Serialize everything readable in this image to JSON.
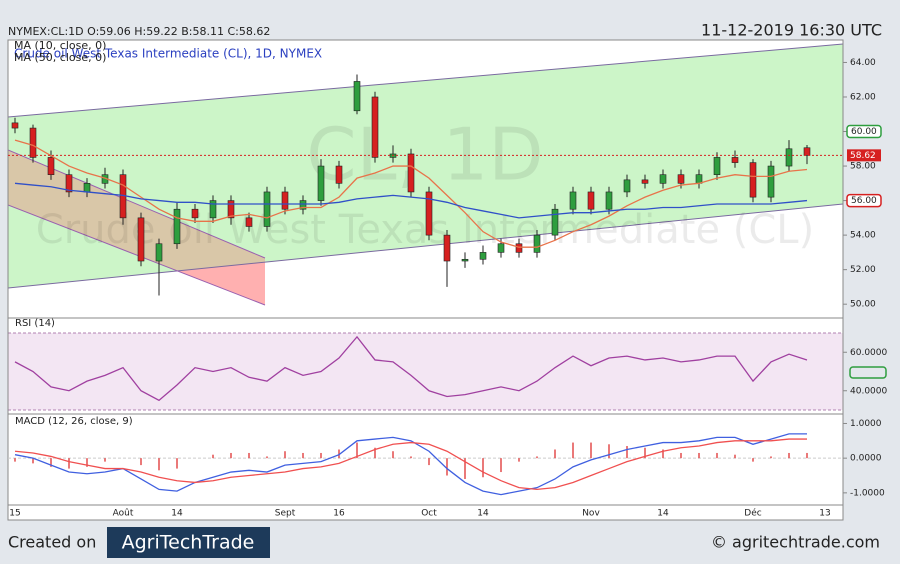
{
  "header": {
    "quote": "NYMEX:CL:1D O:59.06 H:59.22 B:58.11 C:58.62",
    "timestamp": "11-12-2019 16:30 UTC"
  },
  "footer": {
    "created": "Created on",
    "logo": "AgriTechTrade",
    "site": "© agritechtrade.com"
  },
  "chart_data": [
    {
      "type": "candlestick",
      "title": "Crude oil West Texas Intermediate (CL), 1D, NYMEX",
      "watermark": "CL, 1D",
      "watermark_subtitle": "Crude oil West Texas Intermediate (CL)",
      "categories": [
        "15",
        null,
        null,
        null,
        null,
        null,
        "Août",
        null,
        null,
        "14",
        null,
        null,
        null,
        null,
        null,
        "Sept",
        null,
        null,
        "16",
        null,
        null,
        null,
        null,
        "Oct",
        null,
        null,
        "14",
        null,
        null,
        null,
        null,
        null,
        "Nov",
        null,
        null,
        null,
        "14",
        null,
        null,
        null,
        null,
        "Déc",
        null,
        null,
        null,
        "13"
      ],
      "open": [
        60.5,
        60.2,
        58.5,
        57.5,
        56.5,
        57.0,
        57.5,
        55.0,
        52.5,
        53.5,
        55.5,
        55.0,
        56.0,
        55.0,
        54.5,
        56.5,
        55.5,
        56.0,
        58.0,
        61.2,
        62.0,
        58.5,
        58.7,
        56.5,
        54.0,
        52.5,
        52.6,
        53.0,
        53.5,
        53.0,
        54.0,
        55.5,
        56.5,
        55.5,
        56.5,
        57.2,
        57.0,
        57.5,
        57.0,
        57.5,
        58.5,
        58.2,
        56.2,
        58.0,
        59.06,
        null
      ],
      "high": [
        60.8,
        60.4,
        58.9,
        57.8,
        57.3,
        57.9,
        57.8,
        55.3,
        53.8,
        55.9,
        55.8,
        56.3,
        56.3,
        55.3,
        56.8,
        56.8,
        56.3,
        58.4,
        58.3,
        63.3,
        62.3,
        59.2,
        59.0,
        56.8,
        54.3,
        53.0,
        53.4,
        53.8,
        53.8,
        54.3,
        55.8,
        56.8,
        56.8,
        56.8,
        57.5,
        57.5,
        57.8,
        57.8,
        57.8,
        58.8,
        58.9,
        58.4,
        58.3,
        59.5,
        59.22,
        null
      ],
      "low": [
        59.9,
        58.2,
        57.2,
        56.2,
        56.2,
        56.7,
        54.6,
        52.2,
        50.5,
        53.2,
        54.7,
        54.7,
        54.6,
        54.2,
        54.2,
        55.2,
        55.2,
        55.7,
        56.7,
        61.0,
        58.2,
        58.2,
        56.2,
        53.7,
        51.0,
        52.1,
        52.3,
        52.7,
        52.7,
        52.7,
        53.7,
        55.2,
        55.2,
        55.2,
        56.2,
        56.7,
        56.7,
        56.7,
        56.7,
        57.2,
        57.9,
        55.9,
        55.9,
        57.7,
        58.11,
        null
      ],
      "close": [
        60.2,
        58.5,
        57.5,
        56.5,
        57.0,
        57.5,
        55.0,
        52.5,
        53.5,
        55.5,
        55.0,
        56.0,
        55.0,
        54.5,
        56.5,
        55.5,
        56.0,
        58.0,
        57.0,
        62.9,
        58.5,
        58.7,
        56.5,
        54.0,
        52.5,
        52.6,
        53.0,
        53.5,
        53.0,
        54.0,
        55.5,
        56.5,
        55.5,
        56.5,
        57.2,
        57.0,
        57.5,
        57.0,
        57.5,
        58.5,
        58.2,
        56.2,
        58.0,
        59.0,
        58.62,
        null
      ],
      "up_color": "#2e9e3e",
      "down_color": "#d62020",
      "series": [
        {
          "name": "MA (10, close, 0)",
          "color": "#e8734a",
          "values": [
            59.5,
            59.2,
            58.6,
            58.0,
            57.6,
            57.3,
            56.9,
            56.2,
            55.5,
            55.0,
            54.8,
            54.8,
            55.1,
            55.2,
            55.0,
            55.4,
            55.6,
            55.6,
            56.2,
            57.3,
            57.6,
            58.0,
            58.0,
            57.3,
            56.3,
            55.3,
            54.2,
            53.6,
            53.3,
            53.3,
            53.7,
            54.2,
            54.6,
            55.1,
            55.7,
            56.2,
            56.6,
            56.9,
            57.0,
            57.3,
            57.5,
            57.4,
            57.4,
            57.7,
            57.8,
            null
          ]
        },
        {
          "name": "MA (50, close, 0)",
          "color": "#3050c8",
          "values": [
            57.0,
            56.9,
            56.8,
            56.6,
            56.5,
            56.4,
            56.3,
            56.1,
            56.0,
            55.9,
            55.9,
            55.8,
            55.8,
            55.8,
            55.8,
            55.8,
            55.8,
            55.8,
            55.9,
            56.1,
            56.2,
            56.3,
            56.2,
            56.1,
            55.9,
            55.6,
            55.4,
            55.2,
            55.0,
            55.1,
            55.2,
            55.3,
            55.3,
            55.4,
            55.5,
            55.5,
            55.6,
            55.6,
            55.7,
            55.8,
            55.8,
            55.8,
            55.8,
            55.9,
            56.0,
            null
          ]
        }
      ],
      "last_price": 58.62,
      "levels": [
        {
          "value": 60,
          "label": "60.00",
          "color": "#2e9e3e"
        },
        {
          "value": 56,
          "label": "56.00",
          "color": "#d62020"
        }
      ],
      "ylim": [
        49.2,
        65.3
      ],
      "yticks": [
        {
          "value": 50,
          "label": "50.00"
        },
        {
          "value": 52,
          "label": "52.00"
        },
        {
          "value": 54,
          "label": "54.00"
        },
        {
          "value": 56,
          "label": "56.00"
        },
        {
          "value": 58,
          "label": "58.00"
        },
        {
          "value": 60,
          "label": "60.00"
        },
        {
          "value": 62,
          "label": "62.00"
        },
        {
          "value": 64,
          "label": "64.00"
        }
      ]
    },
    {
      "type": "line",
      "title": "RSI (14)",
      "ylim": [
        30,
        70
      ],
      "yticks": [
        {
          "value": 40,
          "label": "40.0000"
        },
        {
          "value": 60,
          "label": "60.0000"
        }
      ],
      "series": [
        {
          "color": "#a040a0",
          "values": [
            55,
            50,
            42,
            40,
            45,
            48,
            52,
            40,
            35,
            43,
            52,
            50,
            52,
            47,
            45,
            52,
            48,
            50,
            57,
            68,
            56,
            55,
            48,
            40,
            37,
            38,
            40,
            42,
            40,
            45,
            52,
            58,
            53,
            57,
            58,
            56,
            57,
            55,
            56,
            58,
            58,
            45,
            55,
            59,
            56,
            null
          ]
        }
      ]
    },
    {
      "type": "macd",
      "title": "MACD (12, 26, close, 9)",
      "ylim": [
        -1.35,
        1.1
      ],
      "yticks": [
        {
          "value": -1,
          "label": "-1.0000"
        },
        {
          "value": 0,
          "label": "0.0000"
        },
        {
          "value": 1,
          "label": "1.0000"
        }
      ],
      "series": [
        {
          "color": "#4060e0",
          "values": [
            0.1,
            0.0,
            -0.2,
            -0.4,
            -0.45,
            -0.4,
            -0.3,
            -0.6,
            -0.9,
            -0.95,
            -0.7,
            -0.55,
            -0.4,
            -0.35,
            -0.4,
            -0.2,
            -0.15,
            -0.1,
            0.1,
            0.5,
            0.55,
            0.6,
            0.5,
            0.2,
            -0.3,
            -0.7,
            -0.95,
            -1.05,
            -0.95,
            -0.85,
            -0.6,
            -0.25,
            -0.05,
            0.1,
            0.25,
            0.35,
            0.45,
            0.45,
            0.5,
            0.6,
            0.6,
            0.4,
            0.55,
            0.7,
            0.7,
            null
          ]
        },
        {
          "color": "#f05050",
          "values": [
            0.2,
            0.15,
            0.05,
            -0.1,
            -0.2,
            -0.3,
            -0.3,
            -0.4,
            -0.55,
            -0.65,
            -0.7,
            -0.65,
            -0.55,
            -0.5,
            -0.45,
            -0.4,
            -0.3,
            -0.25,
            -0.15,
            0.05,
            0.25,
            0.4,
            0.45,
            0.4,
            0.2,
            -0.1,
            -0.4,
            -0.65,
            -0.85,
            -0.9,
            -0.85,
            -0.7,
            -0.5,
            -0.3,
            -0.1,
            0.05,
            0.2,
            0.3,
            0.35,
            0.45,
            0.5,
            0.5,
            0.5,
            0.55,
            0.55,
            null
          ]
        }
      ],
      "histogram": {
        "color": "#e04040",
        "values": [
          -0.1,
          -0.15,
          -0.25,
          -0.3,
          -0.25,
          -0.1,
          0,
          -0.2,
          -0.35,
          -0.3,
          0,
          0.1,
          0.15,
          0.15,
          0.05,
          0.2,
          0.15,
          0.15,
          0.25,
          0.45,
          0.3,
          0.2,
          0.05,
          -0.2,
          -0.5,
          -0.6,
          -0.55,
          -0.4,
          -0.1,
          0.05,
          0.25,
          0.45,
          0.45,
          0.4,
          0.35,
          0.3,
          0.25,
          0.15,
          0.15,
          0.15,
          0.1,
          -0.1,
          0.05,
          0.15,
          0.15,
          null
        ]
      }
    }
  ]
}
